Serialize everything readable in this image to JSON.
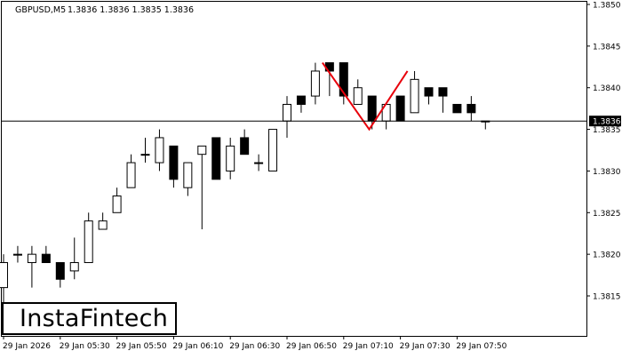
{
  "header": {
    "symbol_timeframe": "GBPUSD,M5",
    "ohlc": "1.3836 1.3836 1.3835 1.3836"
  },
  "logo": {
    "text": "InstaFintech"
  },
  "chart_data": {
    "type": "candlestick",
    "title": "GBPUSD,M5  1.3836 1.3836 1.3835 1.3836",
    "y_range": [
      1.3811,
      1.3851
    ],
    "y_ticks": [
      {
        "value": 1.385,
        "label": "1.3850"
      },
      {
        "value": 1.3845,
        "label": "1.3845"
      },
      {
        "value": 1.384,
        "label": "1.3840"
      },
      {
        "value": 1.3835,
        "label": "1.3835"
      },
      {
        "value": 1.383,
        "label": "1.3830"
      },
      {
        "value": 1.3825,
        "label": "1.3825"
      },
      {
        "value": 1.382,
        "label": "1.3820"
      },
      {
        "value": 1.3815,
        "label": "1.3815"
      }
    ],
    "x_ticks": [
      {
        "index": 0,
        "label": "29 Jan 2026"
      },
      {
        "index": 4,
        "label": "29 Jan 05:30"
      },
      {
        "index": 8,
        "label": "29 Jan 05:50"
      },
      {
        "index": 12,
        "label": "29 Jan 06:10"
      },
      {
        "index": 16,
        "label": "29 Jan 06:30"
      },
      {
        "index": 20,
        "label": "29 Jan 06:50"
      },
      {
        "index": 24,
        "label": "29 Jan 07:10"
      },
      {
        "index": 28,
        "label": "29 Jan 07:30"
      },
      {
        "index": 32,
        "label": "29 Jan 07:50"
      }
    ],
    "current_price": {
      "value": 1.3836,
      "label": "1.3836"
    },
    "candles": [
      {
        "o": 1.3816,
        "h": 1.382,
        "l": 1.3814,
        "c": 1.3819
      },
      {
        "o": 1.382,
        "h": 1.3821,
        "l": 1.3819,
        "c": 1.382
      },
      {
        "o": 1.3819,
        "h": 1.3821,
        "l": 1.3816,
        "c": 1.382
      },
      {
        "o": 1.382,
        "h": 1.3821,
        "l": 1.3819,
        "c": 1.3819
      },
      {
        "o": 1.3819,
        "h": 1.3819,
        "l": 1.3816,
        "c": 1.3817
      },
      {
        "o": 1.3818,
        "h": 1.3822,
        "l": 1.3817,
        "c": 1.3819
      },
      {
        "o": 1.3819,
        "h": 1.3825,
        "l": 1.3819,
        "c": 1.3824
      },
      {
        "o": 1.3823,
        "h": 1.3825,
        "l": 1.3823,
        "c": 1.3824
      },
      {
        "o": 1.3825,
        "h": 1.3828,
        "l": 1.3825,
        "c": 1.3827
      },
      {
        "o": 1.3828,
        "h": 1.3832,
        "l": 1.3828,
        "c": 1.3831
      },
      {
        "o": 1.3832,
        "h": 1.3834,
        "l": 1.3831,
        "c": 1.3832
      },
      {
        "o": 1.3831,
        "h": 1.3835,
        "l": 1.383,
        "c": 1.3834
      },
      {
        "o": 1.3833,
        "h": 1.3833,
        "l": 1.3828,
        "c": 1.3829
      },
      {
        "o": 1.3828,
        "h": 1.3831,
        "l": 1.3827,
        "c": 1.3831
      },
      {
        "o": 1.3832,
        "h": 1.3833,
        "l": 1.3823,
        "c": 1.3833
      },
      {
        "o": 1.3834,
        "h": 1.3834,
        "l": 1.3829,
        "c": 1.3829
      },
      {
        "o": 1.383,
        "h": 1.3834,
        "l": 1.3829,
        "c": 1.3833
      },
      {
        "o": 1.3834,
        "h": 1.3835,
        "l": 1.3832,
        "c": 1.3832
      },
      {
        "o": 1.3831,
        "h": 1.3832,
        "l": 1.383,
        "c": 1.3831
      },
      {
        "o": 1.383,
        "h": 1.3835,
        "l": 1.383,
        "c": 1.3835
      },
      {
        "o": 1.3836,
        "h": 1.3839,
        "l": 1.3834,
        "c": 1.3838
      },
      {
        "o": 1.3839,
        "h": 1.3839,
        "l": 1.3837,
        "c": 1.3838
      },
      {
        "o": 1.3839,
        "h": 1.3843,
        "l": 1.3838,
        "c": 1.3842
      },
      {
        "o": 1.3843,
        "h": 1.3843,
        "l": 1.3839,
        "c": 1.3842
      },
      {
        "o": 1.3843,
        "h": 1.3843,
        "l": 1.3838,
        "c": 1.3839
      },
      {
        "o": 1.3838,
        "h": 1.3841,
        "l": 1.3838,
        "c": 1.384
      },
      {
        "o": 1.3839,
        "h": 1.3839,
        "l": 1.3835,
        "c": 1.3836
      },
      {
        "o": 1.3836,
        "h": 1.3838,
        "l": 1.3835,
        "c": 1.3838
      },
      {
        "o": 1.3839,
        "h": 1.3839,
        "l": 1.3836,
        "c": 1.3836
      },
      {
        "o": 1.3837,
        "h": 1.3842,
        "l": 1.3837,
        "c": 1.3841
      },
      {
        "o": 1.384,
        "h": 1.384,
        "l": 1.3838,
        "c": 1.3839
      },
      {
        "o": 1.384,
        "h": 1.384,
        "l": 1.3837,
        "c": 1.3839
      },
      {
        "o": 1.3838,
        "h": 1.3838,
        "l": 1.3837,
        "c": 1.3837
      },
      {
        "o": 1.3838,
        "h": 1.3839,
        "l": 1.3836,
        "c": 1.3837
      },
      {
        "o": 1.3836,
        "h": 1.3836,
        "l": 1.3835,
        "c": 1.3836
      }
    ],
    "pattern_overlay": {
      "color": "#e8000b",
      "points": [
        {
          "index": 22.5,
          "value": 1.3843
        },
        {
          "index": 25.8,
          "value": 1.3835
        },
        {
          "index": 28.5,
          "value": 1.3842
        }
      ]
    },
    "colors": {
      "background": "#ffffff",
      "bull_body": "#ffffff",
      "bear_body": "#000000",
      "wick": "#000000",
      "price_line": "#000000",
      "price_label_bg": "#000000",
      "price_label_text": "#ffffff",
      "axis_text": "#000000"
    }
  }
}
